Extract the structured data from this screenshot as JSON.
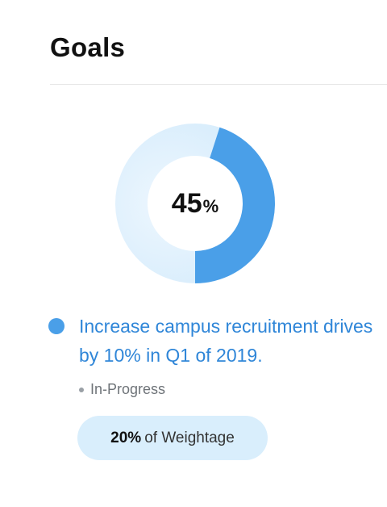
{
  "header": {
    "title": "Goals"
  },
  "progress": {
    "value": 45,
    "display_number": "45",
    "display_sign": "%",
    "colors": {
      "filled": "#4a9fe8",
      "remaining": "#dceffd"
    }
  },
  "goal": {
    "text": "Increase campus recruitment drives by 10% in Q1 of 2019.",
    "status": "In-Progress",
    "dot_color": "#4a9fe8"
  },
  "weightage": {
    "value": "20%",
    "label": "of Weightage"
  }
}
